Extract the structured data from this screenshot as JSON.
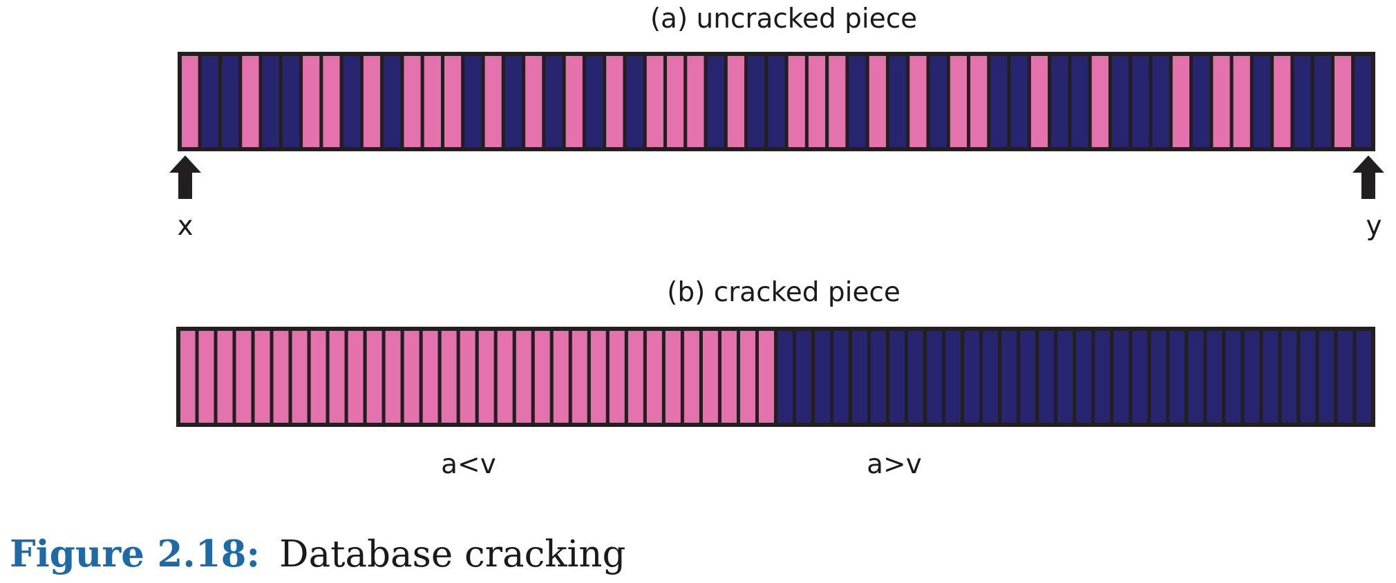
{
  "diagram": {
    "title_a": "(a) uncracked piece",
    "title_b": "(b) cracked piece",
    "pointer_left_label": "x",
    "pointer_right_label": "y",
    "region_low_label": "a<v",
    "region_high_label": "a>v",
    "piece_a_pattern": "PBBPBBPPBPBPPPBPBPBPBPBPPPBPBBPPPBPBPBPPBBPBBPBBBPBPPBPBBPB",
    "piece_b_pattern": "PPPPPPPPPPPPPPPPPPPPPPPPPPPPPPPPBBBBBBBBBBBBBBBBBBBBBBBBBBBBBBBB",
    "colors": {
      "pink": "#e473ad",
      "navy": "#282570",
      "outline": "#231f20",
      "caption_accent": "#1f6aa5"
    }
  },
  "caption": {
    "number": "Figure 2.18:",
    "text": "Database cracking"
  }
}
